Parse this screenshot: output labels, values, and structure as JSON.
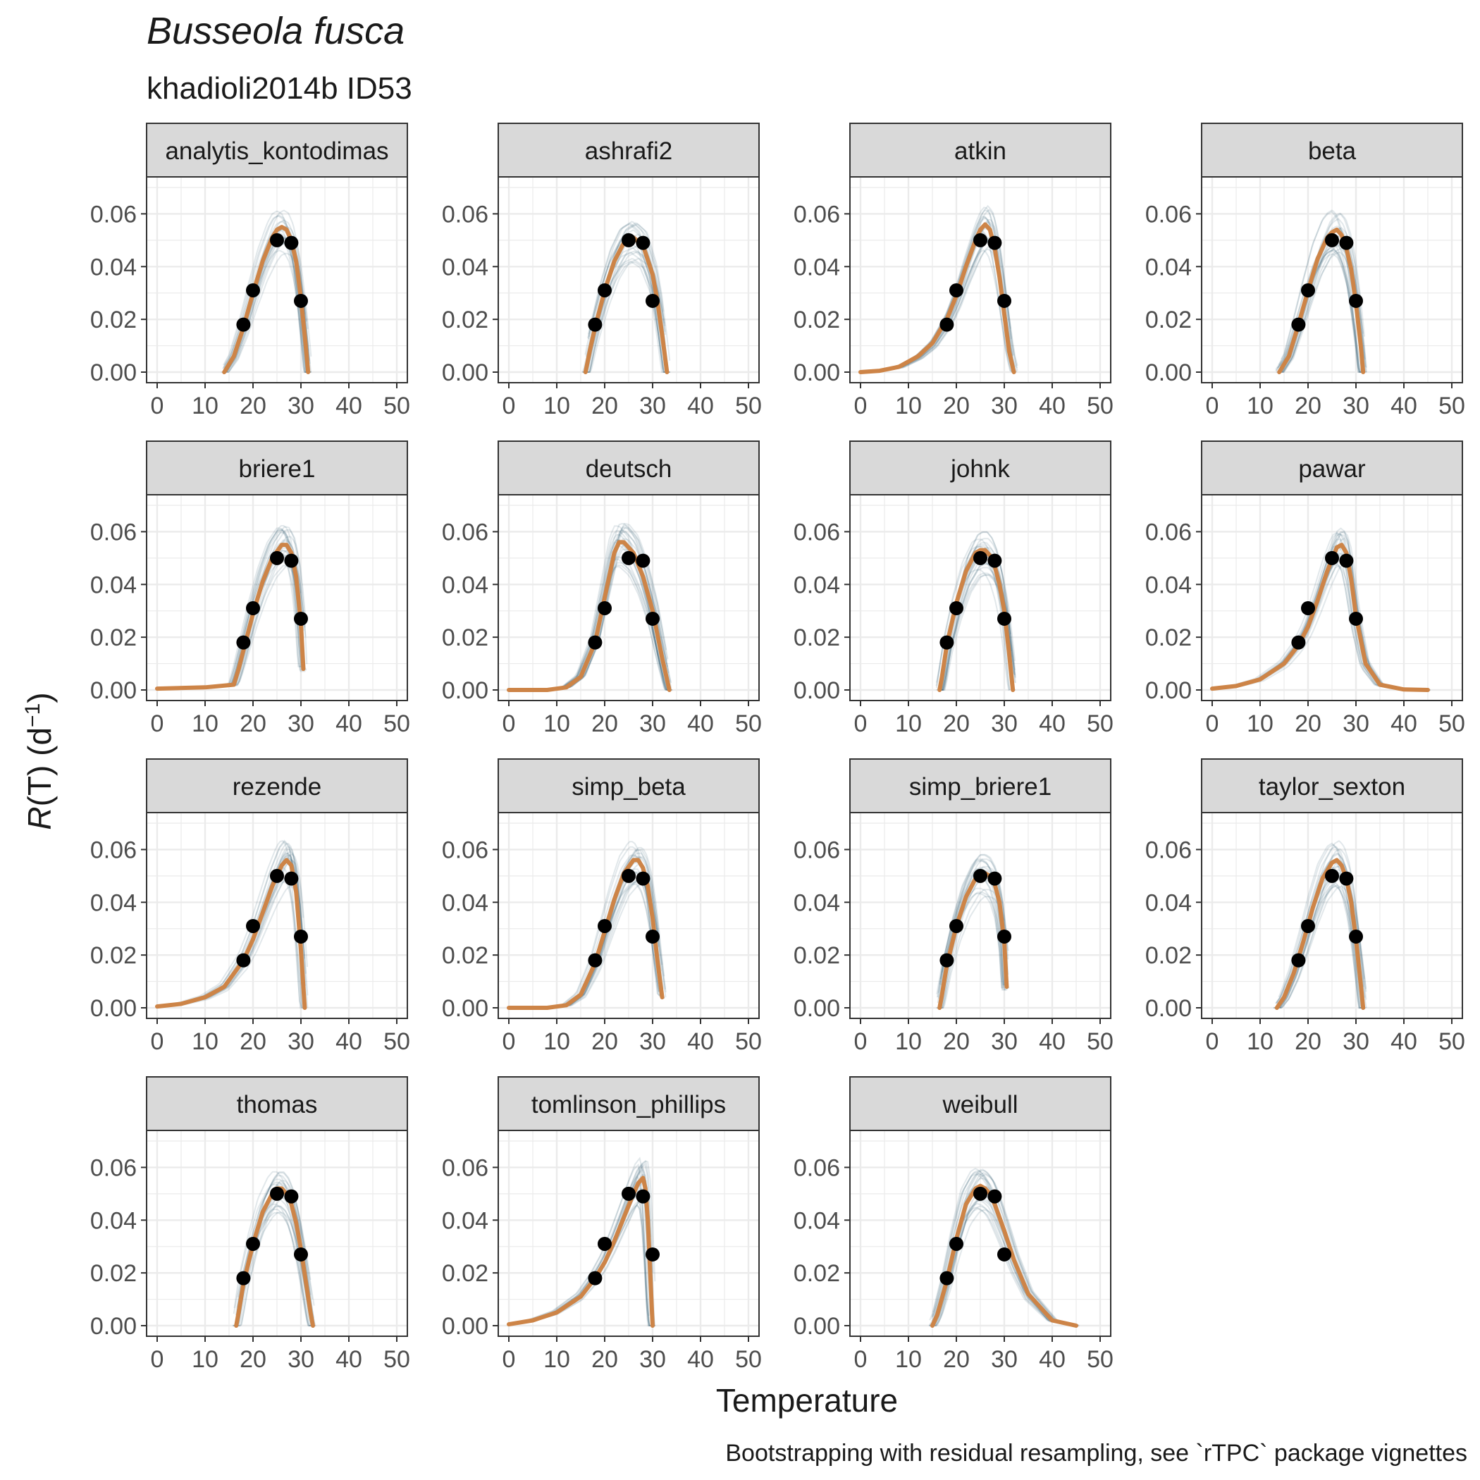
{
  "title": "Busseola fusca",
  "subtitle": "khadioli2014b ID53",
  "xlabel": "Temperature",
  "ylabel_main": "R",
  "ylabel_rest": "(T) (d",
  "ylabel_sup": "−1",
  "ylabel_close": ")",
  "caption": "Bootstrapping with residual resampling, see `rTPC` package vignettes",
  "colors": {
    "fit": "#cd8447",
    "bootstrap": "#1f4e66",
    "points": "#000000",
    "strip_bg": "#d9d9d9",
    "grid": "#ebebeb",
    "panel_border": "#333333"
  },
  "chart_data": {
    "type": "scatter",
    "description_type": "small-multiples line + scatter",
    "xlim": [
      0,
      50
    ],
    "ylim": [
      0,
      0.07
    ],
    "x_ticks": [
      0,
      10,
      20,
      30,
      40,
      50
    ],
    "x_tick_labels": [
      "0",
      "10",
      "20",
      "30",
      "40",
      "50"
    ],
    "y_ticks": [
      0,
      0.02,
      0.04,
      0.06
    ],
    "y_tick_labels": [
      "0.00",
      "0.02",
      "0.04",
      "0.06"
    ],
    "grid": true,
    "observed": {
      "x": [
        18,
        20,
        25,
        28,
        30
      ],
      "y": [
        0.018,
        0.031,
        0.05,
        0.049,
        0.027
      ]
    },
    "panels": [
      {
        "name": "analytis_kontodimas",
        "fit": {
          "x": [
            14,
            16,
            18,
            20,
            22,
            24,
            25,
            26,
            27,
            28,
            29,
            30,
            31,
            31.5
          ],
          "y": [
            0,
            0.006,
            0.017,
            0.03,
            0.042,
            0.051,
            0.054,
            0.055,
            0.054,
            0.05,
            0.042,
            0.028,
            0.01,
            0
          ]
        }
      },
      {
        "name": "ashrafi2",
        "fit": {
          "x": [
            16,
            17,
            18,
            20,
            22,
            24,
            26,
            28,
            30,
            31,
            32,
            33
          ],
          "y": [
            0,
            0.009,
            0.017,
            0.031,
            0.042,
            0.049,
            0.051,
            0.048,
            0.037,
            0.027,
            0.014,
            0
          ]
        }
      },
      {
        "name": "atkin",
        "fit": {
          "x": [
            0,
            4,
            8,
            12,
            15,
            18,
            20,
            22,
            24,
            25,
            26,
            27,
            28,
            29,
            30,
            31,
            32
          ],
          "y": [
            0,
            0.0005,
            0.002,
            0.006,
            0.011,
            0.02,
            0.029,
            0.04,
            0.05,
            0.054,
            0.056,
            0.054,
            0.047,
            0.036,
            0.022,
            0.008,
            0
          ]
        }
      },
      {
        "name": "beta",
        "fit": {
          "x": [
            14,
            16,
            18,
            20,
            22,
            24,
            25,
            26,
            27,
            28,
            29,
            30,
            31,
            31.5
          ],
          "y": [
            0,
            0.006,
            0.018,
            0.031,
            0.043,
            0.051,
            0.053,
            0.054,
            0.052,
            0.047,
            0.039,
            0.026,
            0.01,
            0
          ]
        }
      },
      {
        "name": "briere1",
        "fit": {
          "x": [
            0,
            10,
            16,
            17,
            18,
            20,
            22,
            24,
            26,
            27,
            28,
            29,
            30,
            30.5
          ],
          "y": [
            0.0005,
            0.001,
            0.002,
            0.008,
            0.015,
            0.029,
            0.041,
            0.05,
            0.055,
            0.055,
            0.052,
            0.043,
            0.025,
            0.008
          ]
        }
      },
      {
        "name": "deutsch",
        "fit": {
          "x": [
            0,
            8,
            12,
            15,
            18,
            20,
            22,
            23,
            24,
            26,
            28,
            30,
            32,
            33.5
          ],
          "y": [
            0,
            0,
            0.001,
            0.005,
            0.018,
            0.035,
            0.052,
            0.056,
            0.056,
            0.052,
            0.043,
            0.03,
            0.012,
            0
          ]
        }
      },
      {
        "name": "johnk",
        "fit": {
          "x": [
            16.5,
            17,
            18,
            20,
            22,
            24,
            25,
            26,
            27,
            28,
            29,
            30,
            31,
            31.8
          ],
          "y": [
            0,
            0.005,
            0.017,
            0.033,
            0.045,
            0.052,
            0.053,
            0.053,
            0.051,
            0.047,
            0.04,
            0.03,
            0.014,
            0
          ]
        }
      },
      {
        "name": "pawar",
        "fit": {
          "x": [
            0,
            5,
            10,
            15,
            18,
            20,
            22,
            24,
            26,
            27,
            28,
            29,
            30,
            32,
            35,
            40,
            45
          ],
          "y": [
            0.0005,
            0.0015,
            0.004,
            0.01,
            0.017,
            0.024,
            0.034,
            0.045,
            0.054,
            0.055,
            0.052,
            0.042,
            0.028,
            0.01,
            0.002,
            0.0002,
            0
          ]
        }
      },
      {
        "name": "rezende",
        "fit": {
          "x": [
            0,
            5,
            10,
            14,
            18,
            20,
            22,
            24,
            26,
            27,
            28,
            29,
            30,
            30.8
          ],
          "y": [
            0.0005,
            0.0015,
            0.004,
            0.008,
            0.018,
            0.026,
            0.036,
            0.046,
            0.054,
            0.056,
            0.054,
            0.044,
            0.022,
            0
          ]
        }
      },
      {
        "name": "simp_beta",
        "fit": {
          "x": [
            0,
            8,
            12,
            15,
            18,
            20,
            22,
            24,
            26,
            27,
            28,
            29,
            30,
            31,
            32
          ],
          "y": [
            0,
            0,
            0.001,
            0.005,
            0.017,
            0.029,
            0.041,
            0.051,
            0.056,
            0.056,
            0.053,
            0.046,
            0.034,
            0.018,
            0.004
          ]
        }
      },
      {
        "name": "simp_briere1",
        "fit": {
          "x": [
            16.5,
            17,
            18,
            20,
            22,
            24,
            25,
            26,
            27,
            28,
            29,
            30,
            30.5
          ],
          "y": [
            0,
            0.005,
            0.016,
            0.031,
            0.042,
            0.049,
            0.051,
            0.051,
            0.05,
            0.047,
            0.04,
            0.025,
            0.008
          ]
        }
      },
      {
        "name": "taylor_sexton",
        "fit": {
          "x": [
            13.5,
            15,
            17,
            19,
            21,
            23,
            25,
            26,
            27,
            28,
            29,
            30,
            31,
            31.5
          ],
          "y": [
            0,
            0.004,
            0.013,
            0.025,
            0.038,
            0.049,
            0.055,
            0.056,
            0.054,
            0.049,
            0.04,
            0.026,
            0.009,
            0
          ]
        }
      },
      {
        "name": "thomas",
        "fit": {
          "x": [
            16.5,
            17,
            18,
            20,
            22,
            24,
            25,
            26,
            27,
            28,
            29,
            30,
            31,
            32,
            32.5
          ],
          "y": [
            0,
            0.005,
            0.016,
            0.031,
            0.043,
            0.05,
            0.052,
            0.052,
            0.05,
            0.046,
            0.039,
            0.029,
            0.017,
            0.005,
            0
          ]
        }
      },
      {
        "name": "tomlinson_phillips",
        "fit": {
          "x": [
            0,
            5,
            10,
            15,
            18,
            20,
            22,
            24,
            26,
            27,
            28,
            28.5,
            29,
            29.5,
            30
          ],
          "y": [
            0.0005,
            0.002,
            0.005,
            0.011,
            0.018,
            0.024,
            0.032,
            0.041,
            0.05,
            0.054,
            0.056,
            0.052,
            0.04,
            0.02,
            0
          ]
        }
      },
      {
        "name": "weibull",
        "fit": {
          "x": [
            15,
            16,
            18,
            20,
            22,
            24,
            25,
            26,
            27,
            28,
            30,
            32,
            35,
            40,
            45
          ],
          "y": [
            0,
            0.004,
            0.017,
            0.033,
            0.046,
            0.052,
            0.053,
            0.052,
            0.05,
            0.046,
            0.036,
            0.025,
            0.012,
            0.002,
            0
          ]
        }
      }
    ]
  }
}
